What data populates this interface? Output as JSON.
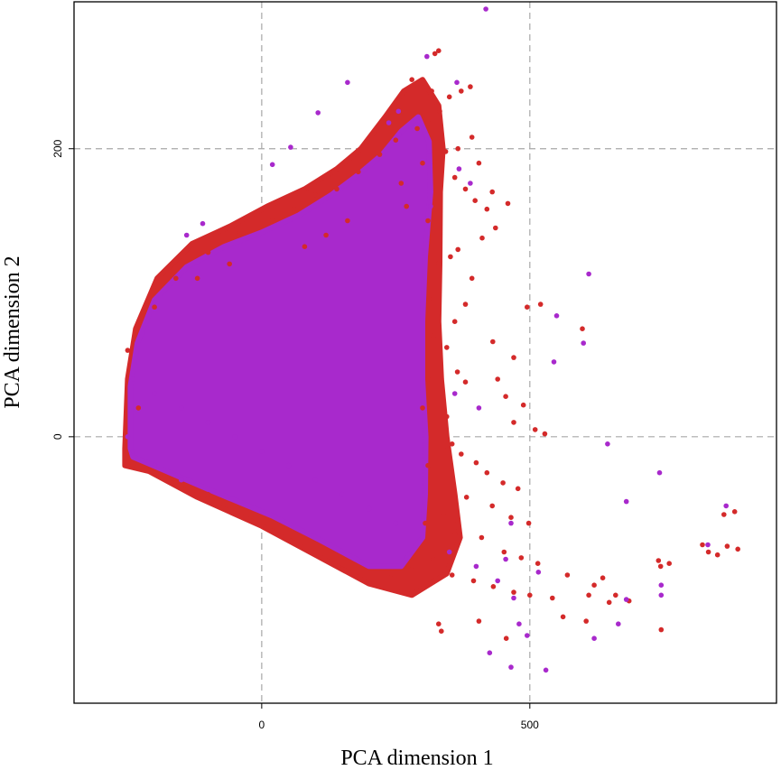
{
  "chart_data": {
    "type": "scatter",
    "title": "",
    "xlabel": "PCA dimension 1",
    "ylabel": "PCA dimension 2",
    "xlim": [
      -350,
      960
    ],
    "ylim": [
      -185,
      302
    ],
    "x_ticks": [
      0,
      500
    ],
    "y_ticks": [
      0,
      200
    ],
    "x_tick_labels": [
      "0",
      "500"
    ],
    "y_tick_labels": [
      "0",
      "200"
    ],
    "grid": true,
    "grid_style": "dashed",
    "legend": "none",
    "colors": {
      "series_a": "#d42a2a",
      "series_b": "#a829cc",
      "grid": "#a8a8a8"
    },
    "series": [
      {
        "color": "#d42a2a",
        "values": [
          {
            "x": 330,
            "y": 268
          },
          {
            "x": 323,
            "y": 266
          },
          {
            "x": 280,
            "y": 248
          },
          {
            "x": 317,
            "y": 240
          },
          {
            "x": 372,
            "y": 240
          },
          {
            "x": 389,
            "y": 243
          },
          {
            "x": 350,
            "y": 236
          },
          {
            "x": 332,
            "y": 226
          },
          {
            "x": 310,
            "y": 218
          },
          {
            "x": 290,
            "y": 214
          },
          {
            "x": 392,
            "y": 208
          },
          {
            "x": 366,
            "y": 200
          },
          {
            "x": 343,
            "y": 198
          },
          {
            "x": 405,
            "y": 190
          },
          {
            "x": 360,
            "y": 180
          },
          {
            "x": 380,
            "y": 172
          },
          {
            "x": 398,
            "y": 164
          },
          {
            "x": 459,
            "y": 162
          },
          {
            "x": 430,
            "y": 170
          },
          {
            "x": 420,
            "y": 158
          },
          {
            "x": 436,
            "y": 145
          },
          {
            "x": 411,
            "y": 138
          },
          {
            "x": 366,
            "y": 130
          },
          {
            "x": 352,
            "y": 125
          },
          {
            "x": 392,
            "y": 110
          },
          {
            "x": 380,
            "y": 92
          },
          {
            "x": 495,
            "y": 90
          },
          {
            "x": 520,
            "y": 92
          },
          {
            "x": 598,
            "y": 75
          },
          {
            "x": 360,
            "y": 80
          },
          {
            "x": 431,
            "y": 66
          },
          {
            "x": 470,
            "y": 55
          },
          {
            "x": 345,
            "y": 62
          },
          {
            "x": 365,
            "y": 45
          },
          {
            "x": 380,
            "y": 38
          },
          {
            "x": 440,
            "y": 40
          },
          {
            "x": 455,
            "y": 28
          },
          {
            "x": 488,
            "y": 22
          },
          {
            "x": 470,
            "y": 10
          },
          {
            "x": 510,
            "y": 5
          },
          {
            "x": 528,
            "y": 2
          },
          {
            "x": 345,
            "y": 14
          },
          {
            "x": 355,
            "y": -5
          },
          {
            "x": 372,
            "y": -12
          },
          {
            "x": 400,
            "y": -18
          },
          {
            "x": 420,
            "y": -25
          },
          {
            "x": 450,
            "y": -32
          },
          {
            "x": 478,
            "y": -36
          },
          {
            "x": 382,
            "y": -42
          },
          {
            "x": 430,
            "y": -48
          },
          {
            "x": 465,
            "y": -56
          },
          {
            "x": 498,
            "y": -60
          },
          {
            "x": 340,
            "y": -55
          },
          {
            "x": 360,
            "y": -68
          },
          {
            "x": 410,
            "y": -70
          },
          {
            "x": 452,
            "y": -80
          },
          {
            "x": 484,
            "y": -84
          },
          {
            "x": 515,
            "y": -88
          },
          {
            "x": 320,
            "y": -85
          },
          {
            "x": 280,
            "y": -92
          },
          {
            "x": 355,
            "y": -96
          },
          {
            "x": 395,
            "y": -100
          },
          {
            "x": 432,
            "y": -104
          },
          {
            "x": 470,
            "y": -108
          },
          {
            "x": 500,
            "y": -110
          },
          {
            "x": 542,
            "y": -112
          },
          {
            "x": 570,
            "y": -96
          },
          {
            "x": 240,
            "y": -98
          },
          {
            "x": 200,
            "y": -100
          },
          {
            "x": 150,
            "y": -92
          },
          {
            "x": 100,
            "y": -80
          },
          {
            "x": 60,
            "y": -70
          },
          {
            "x": -20,
            "y": -55
          },
          {
            "x": -100,
            "y": -40
          },
          {
            "x": -180,
            "y": -28
          },
          {
            "x": -240,
            "y": -20
          },
          {
            "x": 330,
            "y": -130
          },
          {
            "x": 335,
            "y": -135
          },
          {
            "x": 405,
            "y": -128
          },
          {
            "x": 456,
            "y": -140
          },
          {
            "x": 562,
            "y": -125
          },
          {
            "x": 605,
            "y": -128
          },
          {
            "x": 648,
            "y": -115
          },
          {
            "x": 660,
            "y": -110
          },
          {
            "x": 610,
            "y": -110
          },
          {
            "x": 636,
            "y": -98
          },
          {
            "x": 620,
            "y": -103
          },
          {
            "x": 685,
            "y": -114
          },
          {
            "x": 740,
            "y": -86
          },
          {
            "x": 744,
            "y": -90
          },
          {
            "x": 760,
            "y": -88
          },
          {
            "x": 833,
            "y": -80
          },
          {
            "x": 850,
            "y": -82
          },
          {
            "x": 868,
            "y": -76
          },
          {
            "x": 888,
            "y": -78
          },
          {
            "x": 822,
            "y": -75
          },
          {
            "x": 882,
            "y": -52
          },
          {
            "x": 862,
            "y": -54
          },
          {
            "x": 745,
            "y": -134
          },
          {
            "x": -230,
            "y": 20
          },
          {
            "x": -250,
            "y": 60
          },
          {
            "x": -200,
            "y": 90
          },
          {
            "x": -160,
            "y": 110
          },
          {
            "x": -100,
            "y": 128
          },
          {
            "x": -40,
            "y": 142
          },
          {
            "x": 20,
            "y": 150
          },
          {
            "x": 60,
            "y": 158
          },
          {
            "x": 100,
            "y": 168
          },
          {
            "x": 140,
            "y": 172
          },
          {
            "x": 180,
            "y": 184
          },
          {
            "x": 220,
            "y": 196
          },
          {
            "x": 250,
            "y": 206
          },
          {
            "x": 160,
            "y": 150
          },
          {
            "x": 120,
            "y": 140
          },
          {
            "x": 80,
            "y": 132
          },
          {
            "x": -60,
            "y": 120
          },
          {
            "x": -120,
            "y": 110
          },
          {
            "x": 260,
            "y": 176
          },
          {
            "x": 300,
            "y": 190
          },
          {
            "x": 270,
            "y": 160
          },
          {
            "x": 310,
            "y": 150
          },
          {
            "x": 330,
            "y": 120
          },
          {
            "x": 312,
            "y": 96
          },
          {
            "x": 320,
            "y": 70
          },
          {
            "x": 310,
            "y": 40
          },
          {
            "x": 300,
            "y": 20
          },
          {
            "x": 310,
            "y": -20
          },
          {
            "x": 305,
            "y": -60
          }
        ]
      },
      {
        "color": "#a829cc",
        "values": [
          {
            "x": 418,
            "y": 297
          },
          {
            "x": 308,
            "y": 264
          },
          {
            "x": 364,
            "y": 246
          },
          {
            "x": 255,
            "y": 226
          },
          {
            "x": 237,
            "y": 218
          },
          {
            "x": 256,
            "y": 210
          },
          {
            "x": 313,
            "y": 198
          },
          {
            "x": 368,
            "y": 186
          },
          {
            "x": 389,
            "y": 176
          },
          {
            "x": 315,
            "y": 160
          },
          {
            "x": 160,
            "y": 246
          },
          {
            "x": 105,
            "y": 225
          },
          {
            "x": 54,
            "y": 201
          },
          {
            "x": 20,
            "y": 189
          },
          {
            "x": -110,
            "y": 148
          },
          {
            "x": -140,
            "y": 140
          },
          {
            "x": 610,
            "y": 113
          },
          {
            "x": 550,
            "y": 84
          },
          {
            "x": 600,
            "y": 65
          },
          {
            "x": 545,
            "y": 52
          },
          {
            "x": 645,
            "y": -5
          },
          {
            "x": 405,
            "y": 20
          },
          {
            "x": 360,
            "y": 30
          },
          {
            "x": 465,
            "y": -60
          },
          {
            "x": 455,
            "y": -85
          },
          {
            "x": 516,
            "y": -94
          },
          {
            "x": 680,
            "y": -45
          },
          {
            "x": 742,
            "y": -25
          },
          {
            "x": 745,
            "y": -103
          },
          {
            "x": 745,
            "y": -110
          },
          {
            "x": 832,
            "y": -75
          },
          {
            "x": 866,
            "y": -48
          },
          {
            "x": 665,
            "y": -130
          },
          {
            "x": 680,
            "y": -113
          },
          {
            "x": 620,
            "y": -140
          },
          {
            "x": 425,
            "y": -150
          },
          {
            "x": 480,
            "y": -130
          },
          {
            "x": 495,
            "y": -138
          },
          {
            "x": 465,
            "y": -160
          },
          {
            "x": 530,
            "y": -162
          },
          {
            "x": 470,
            "y": -112
          },
          {
            "x": 440,
            "y": -100
          },
          {
            "x": 400,
            "y": -90
          },
          {
            "x": 350,
            "y": -80
          },
          {
            "x": 300,
            "y": -70
          },
          {
            "x": 250,
            "y": -60
          },
          {
            "x": 200,
            "y": -50
          },
          {
            "x": 150,
            "y": -40
          },
          {
            "x": 100,
            "y": -30
          },
          {
            "x": 50,
            "y": -20
          },
          {
            "x": 0,
            "y": -10
          },
          {
            "x": -50,
            "y": 0
          },
          {
            "x": -100,
            "y": 10
          },
          {
            "x": -150,
            "y": 20
          },
          {
            "x": -200,
            "y": 30
          },
          {
            "x": -240,
            "y": 40
          },
          {
            "x": -250,
            "y": 0
          },
          {
            "x": -240,
            "y": -10
          },
          {
            "x": -200,
            "y": -20
          },
          {
            "x": -150,
            "y": -30
          }
        ]
      }
    ]
  }
}
